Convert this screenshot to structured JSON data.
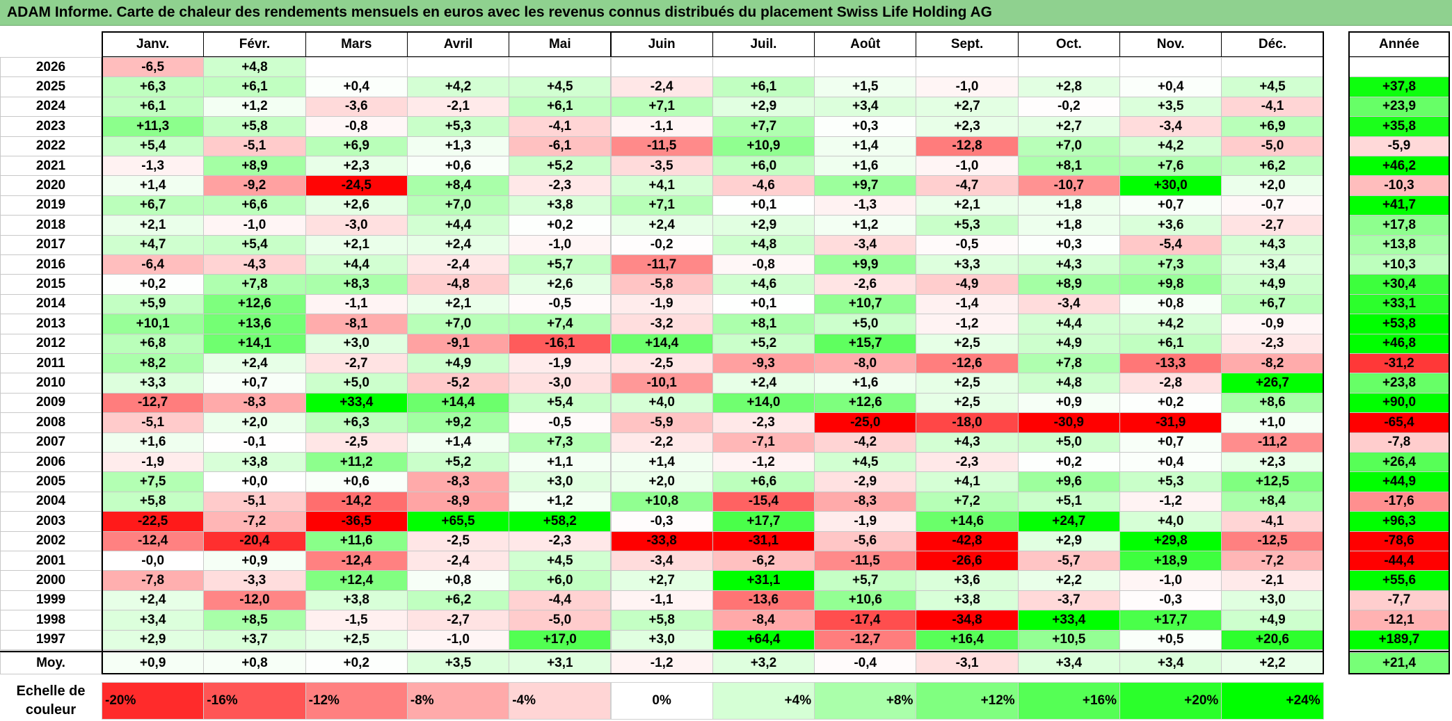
{
  "title": "ADAM Informe. Carte de chaleur des rendements mensuels en euros avec les revenus connus distribués du placement Swiss Life Holding AG",
  "chart_data": {
    "type": "heatmap",
    "months": [
      "Janv.",
      "Févr.",
      "Mars",
      "Avril",
      "Mai",
      "Juin",
      "Juil.",
      "Août",
      "Sept.",
      "Oct.",
      "Nov.",
      "Déc."
    ],
    "year_header": "Année",
    "avg_label": "Moy.",
    "rows": [
      {
        "year": "2026",
        "values": [
          "-6,5",
          "+4,8",
          "",
          "",
          "",
          "",
          "",
          "",
          "",
          "",
          "",
          ""
        ],
        "annual": ""
      },
      {
        "year": "2025",
        "values": [
          "+6,3",
          "+6,1",
          "+0,4",
          "+4,2",
          "+4,5",
          "-2,4",
          "+6,1",
          "+1,5",
          "-1,0",
          "+2,8",
          "+0,4",
          "+4,5"
        ],
        "annual": "+37,8"
      },
      {
        "year": "2024",
        "values": [
          "+6,1",
          "+1,2",
          "-3,6",
          "-2,1",
          "+6,1",
          "+7,1",
          "+2,9",
          "+3,4",
          "+2,7",
          "-0,2",
          "+3,5",
          "-4,1"
        ],
        "annual": "+23,9"
      },
      {
        "year": "2023",
        "values": [
          "+11,3",
          "+5,8",
          "-0,8",
          "+5,3",
          "-4,1",
          "-1,1",
          "+7,7",
          "+0,3",
          "+2,3",
          "+2,7",
          "-3,4",
          "+6,9"
        ],
        "annual": "+35,8"
      },
      {
        "year": "2022",
        "values": [
          "+5,4",
          "-5,1",
          "+6,9",
          "+1,3",
          "-6,1",
          "-11,5",
          "+10,9",
          "+1,4",
          "-12,8",
          "+7,0",
          "+4,2",
          "-5,0"
        ],
        "annual": "-5,9"
      },
      {
        "year": "2021",
        "values": [
          "-1,3",
          "+8,9",
          "+2,3",
          "+0,6",
          "+5,2",
          "-3,5",
          "+6,0",
          "+1,6",
          "-1,0",
          "+8,1",
          "+7,6",
          "+6,2"
        ],
        "annual": "+46,2"
      },
      {
        "year": "2020",
        "values": [
          "+1,4",
          "-9,2",
          "-24,5",
          "+8,4",
          "-2,3",
          "+4,1",
          "-4,6",
          "+9,7",
          "-4,7",
          "-10,7",
          "+30,0",
          "+2,0"
        ],
        "annual": "-10,3"
      },
      {
        "year": "2019",
        "values": [
          "+6,7",
          "+6,6",
          "+2,6",
          "+7,0",
          "+3,8",
          "+7,1",
          "+0,1",
          "-1,3",
          "+2,1",
          "+1,8",
          "+0,7",
          "-0,7"
        ],
        "annual": "+41,7"
      },
      {
        "year": "2018",
        "values": [
          "+2,1",
          "-1,0",
          "-3,0",
          "+4,4",
          "+0,2",
          "+2,4",
          "+2,9",
          "+1,2",
          "+5,3",
          "+1,8",
          "+3,6",
          "-2,7"
        ],
        "annual": "+17,8"
      },
      {
        "year": "2017",
        "values": [
          "+4,7",
          "+5,4",
          "+2,1",
          "+2,4",
          "-1,0",
          "-0,2",
          "+4,8",
          "-3,4",
          "-0,5",
          "+0,3",
          "-5,4",
          "+4,3"
        ],
        "annual": "+13,8"
      },
      {
        "year": "2016",
        "values": [
          "-6,4",
          "-4,3",
          "+4,4",
          "-2,4",
          "+5,7",
          "-11,7",
          "-0,8",
          "+9,9",
          "+3,3",
          "+4,3",
          "+7,3",
          "+3,4"
        ],
        "annual": "+10,3"
      },
      {
        "year": "2015",
        "values": [
          "+0,2",
          "+7,8",
          "+8,3",
          "-4,8",
          "+2,6",
          "-5,8",
          "+4,6",
          "-2,6",
          "-4,9",
          "+8,9",
          "+9,8",
          "+4,9"
        ],
        "annual": "+30,4"
      },
      {
        "year": "2014",
        "values": [
          "+5,9",
          "+12,6",
          "-1,1",
          "+2,1",
          "-0,5",
          "-1,9",
          "+0,1",
          "+10,7",
          "-1,4",
          "-3,4",
          "+0,8",
          "+6,7"
        ],
        "annual": "+33,1"
      },
      {
        "year": "2013",
        "values": [
          "+10,1",
          "+13,6",
          "-8,1",
          "+7,0",
          "+7,4",
          "-3,2",
          "+8,1",
          "+5,0",
          "-1,2",
          "+4,4",
          "+4,2",
          "-0,9"
        ],
        "annual": "+53,8"
      },
      {
        "year": "2012",
        "values": [
          "+6,8",
          "+14,1",
          "+3,0",
          "-9,1",
          "-16,1",
          "+14,4",
          "+5,2",
          "+15,7",
          "+2,5",
          "+4,9",
          "+6,1",
          "-2,3"
        ],
        "annual": "+46,8"
      },
      {
        "year": "2011",
        "values": [
          "+8,2",
          "+2,4",
          "-2,7",
          "+4,9",
          "-1,9",
          "-2,5",
          "-9,3",
          "-8,0",
          "-12,6",
          "+7,8",
          "-13,3",
          "-8,2"
        ],
        "annual": "-31,2"
      },
      {
        "year": "2010",
        "values": [
          "+3,3",
          "+0,7",
          "+5,0",
          "-5,2",
          "-3,0",
          "-10,1",
          "+2,4",
          "+1,6",
          "+2,5",
          "+4,8",
          "-2,8",
          "+26,7"
        ],
        "annual": "+23,8"
      },
      {
        "year": "2009",
        "values": [
          "-12,7",
          "-8,3",
          "+33,4",
          "+14,4",
          "+5,4",
          "+4,0",
          "+14,0",
          "+12,6",
          "+2,5",
          "+0,9",
          "+0,2",
          "+8,6"
        ],
        "annual": "+90,0"
      },
      {
        "year": "2008",
        "values": [
          "-5,1",
          "+2,0",
          "+6,3",
          "+9,2",
          "-0,5",
          "-5,9",
          "-2,3",
          "-25,0",
          "-18,0",
          "-30,9",
          "-31,9",
          "+1,0"
        ],
        "annual": "-65,4"
      },
      {
        "year": "2007",
        "values": [
          "+1,6",
          "-0,1",
          "-2,5",
          "+1,4",
          "+7,3",
          "-2,2",
          "-7,1",
          "-4,2",
          "+4,3",
          "+5,0",
          "+0,7",
          "-11,2"
        ],
        "annual": "-7,8"
      },
      {
        "year": "2006",
        "values": [
          "-1,9",
          "+3,8",
          "+11,2",
          "+5,2",
          "+1,1",
          "+1,4",
          "-1,2",
          "+4,5",
          "-2,3",
          "+0,2",
          "+0,4",
          "+2,3"
        ],
        "annual": "+26,4"
      },
      {
        "year": "2005",
        "values": [
          "+7,5",
          "+0,0",
          "+0,6",
          "-8,3",
          "+3,0",
          "+2,0",
          "+6,6",
          "-2,9",
          "+4,1",
          "+9,6",
          "+5,3",
          "+12,5"
        ],
        "annual": "+44,9"
      },
      {
        "year": "2004",
        "values": [
          "+5,8",
          "-5,1",
          "-14,2",
          "-8,9",
          "+1,2",
          "+10,8",
          "-15,4",
          "-8,3",
          "+7,2",
          "+5,1",
          "-1,2",
          "+8,4"
        ],
        "annual": "-17,6"
      },
      {
        "year": "2003",
        "values": [
          "-22,5",
          "-7,2",
          "-36,5",
          "+65,5",
          "+58,2",
          "-0,3",
          "+17,7",
          "-1,9",
          "+14,6",
          "+24,7",
          "+4,0",
          "-4,1"
        ],
        "annual": "+96,3"
      },
      {
        "year": "2002",
        "values": [
          "-12,4",
          "-20,4",
          "+11,6",
          "-2,5",
          "-2,3",
          "-33,8",
          "-31,1",
          "-5,6",
          "-42,8",
          "+2,9",
          "+29,8",
          "-12,5"
        ],
        "annual": "-78,6"
      },
      {
        "year": "2001",
        "values": [
          "-0,0",
          "+0,9",
          "-12,4",
          "-2,4",
          "+4,5",
          "-3,4",
          "-6,2",
          "-11,5",
          "-26,6",
          "-5,7",
          "+18,9",
          "-7,2"
        ],
        "annual": "-44,4"
      },
      {
        "year": "2000",
        "values": [
          "-7,8",
          "-3,3",
          "+12,4",
          "+0,8",
          "+6,0",
          "+2,7",
          "+31,1",
          "+5,7",
          "+3,6",
          "+2,2",
          "-1,0",
          "-2,1"
        ],
        "annual": "+55,6"
      },
      {
        "year": "1999",
        "values": [
          "+2,4",
          "-12,0",
          "+3,8",
          "+6,2",
          "-4,4",
          "-1,1",
          "-13,6",
          "+10,6",
          "+3,8",
          "-3,7",
          "-0,3",
          "+3,0"
        ],
        "annual": "-7,7"
      },
      {
        "year": "1998",
        "values": [
          "+3,4",
          "+8,5",
          "-1,5",
          "-2,7",
          "-5,0",
          "+5,8",
          "-8,4",
          "-17,4",
          "-34,8",
          "+33,4",
          "+17,7",
          "+4,9"
        ],
        "annual": "-12,1"
      },
      {
        "year": "1997",
        "values": [
          "+2,9",
          "+3,7",
          "+2,5",
          "-1,0",
          "+17,0",
          "+3,0",
          "+64,4",
          "-12,7",
          "+16,4",
          "+10,5",
          "+0,5",
          "+20,6"
        ],
        "annual": "+189,7"
      }
    ],
    "averages": [
      "+0,9",
      "+0,8",
      "+0,2",
      "+3,5",
      "+3,1",
      "-1,2",
      "+3,2",
      "-0,4",
      "-3,1",
      "+3,4",
      "+3,4",
      "+2,2"
    ],
    "average_annual": "+21,4",
    "scale_label": "Echelle de couleur",
    "scale": [
      "-20%",
      "-16%",
      "-12%",
      "-8%",
      "-4%",
      "0%",
      "+4%",
      "+8%",
      "+12%",
      "+16%",
      "+20%",
      "+24%"
    ],
    "colors": {
      "positive_max": "#00ff00",
      "negative_max": "#ff0000",
      "neutral": "#ffffff",
      "title_bar": "#8fd18f"
    }
  }
}
